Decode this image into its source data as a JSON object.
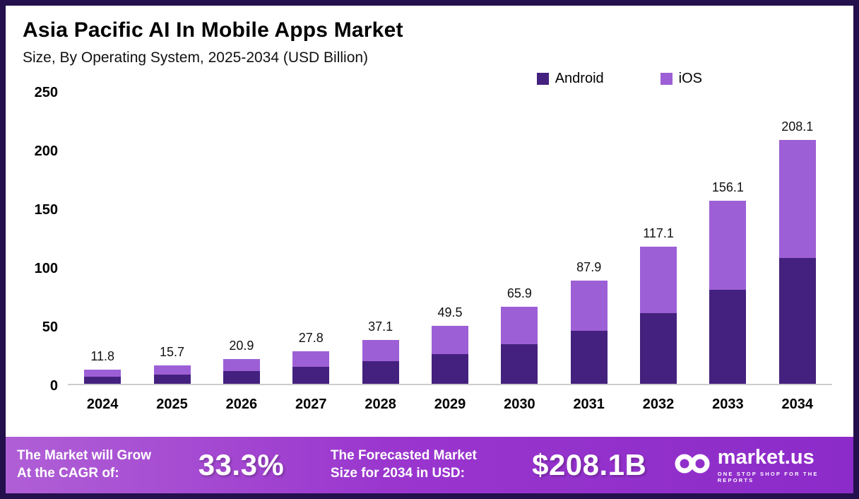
{
  "header": {
    "title": "Asia Pacific AI In Mobile Apps Market",
    "subtitle": "Size, By Operating System, 2025-2034 (USD Billion)"
  },
  "chart_data": {
    "type": "bar",
    "stacked": true,
    "title": "Asia Pacific AI In Mobile Apps Market",
    "subtitle": "Size, By Operating System, 2025-2034 (USD Billion)",
    "categories": [
      "2024",
      "2025",
      "2026",
      "2027",
      "2028",
      "2029",
      "2030",
      "2031",
      "2032",
      "2033",
      "2034"
    ],
    "series": [
      {
        "name": "Android",
        "color": "#44217E",
        "values": [
          6.1,
          8.1,
          10.8,
          14.3,
          19.1,
          25.5,
          33.9,
          45.3,
          60.3,
          80.4,
          107.2
        ]
      },
      {
        "name": "iOS",
        "color": "#9D5FD6",
        "values": [
          5.7,
          7.6,
          10.1,
          13.5,
          18.0,
          24.0,
          32.0,
          42.6,
          56.8,
          75.7,
          100.9
        ]
      }
    ],
    "totals": [
      "11.8",
      "15.7",
      "20.9",
      "27.8",
      "37.1",
      "49.5",
      "65.9",
      "87.9",
      "117.1",
      "156.1",
      "208.1"
    ],
    "xlabel": "",
    "ylabel": "",
    "ylim": [
      0,
      250
    ],
    "yticks": [
      0,
      50,
      100,
      150,
      200,
      250
    ],
    "grid": false,
    "legend_position": "top-right"
  },
  "footer": {
    "cagr_label": "The Market will Grow\nAt the CAGR of:",
    "cagr_value": "33.3%",
    "forecast_label": "The Forecasted Market\nSize for 2034 in USD:",
    "forecast_value": "$208.1B",
    "brand": {
      "name": "market.us",
      "tagline": "ONE STOP SHOP FOR THE REPORTS"
    }
  }
}
